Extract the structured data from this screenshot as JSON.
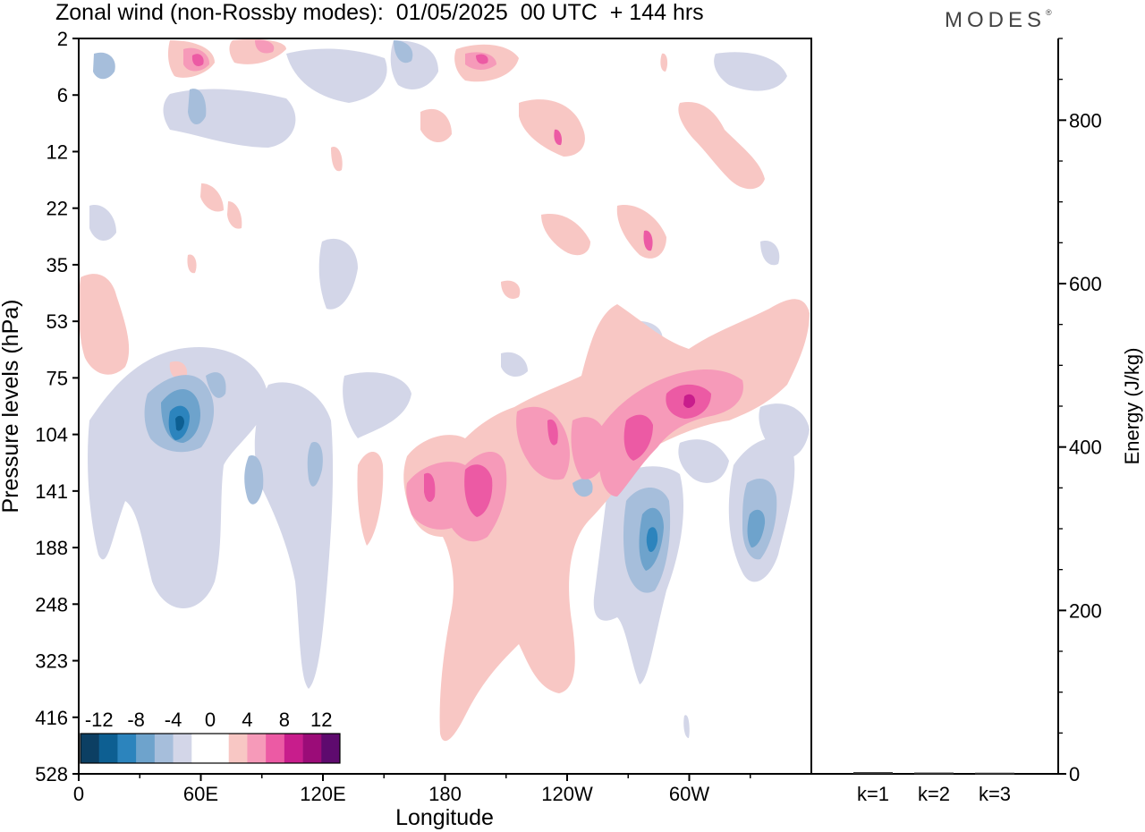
{
  "title": "Zonal wind (non-Rossby modes):  01/05/2025  00 UTC  + 144 hrs",
  "brand": "MODES",
  "brand_mark": "®",
  "chart_data": [
    {
      "type": "heatmap",
      "title": "Zonal wind (non-Rossby modes):  01/05/2025  00 UTC  + 144 hrs",
      "xlabel": "Longitude",
      "ylabel": "Pressure levels (hPa)",
      "x_ticks": [
        "0",
        "60E",
        "120E",
        "180",
        "120W",
        "60W"
      ],
      "y_ticks": [
        "2",
        "6",
        "12",
        "22",
        "35",
        "53",
        "75",
        "104",
        "141",
        "188",
        "248",
        "323",
        "416",
        "528"
      ],
      "colorbar": {
        "labels": [
          "-12",
          "-8",
          "-4",
          "0",
          "4",
          "8",
          "12"
        ],
        "colors": [
          "#0c3f63",
          "#0d5f92",
          "#2c84bd",
          "#6ea3cc",
          "#a6bedb",
          "#d3d6e8",
          "#ffffff",
          "#ffffff",
          "#f8c7c4",
          "#f69ab9",
          "#ec5aa4",
          "#c81d8c",
          "#9b0c78",
          "#5e0a6e"
        ]
      },
      "features": [
        {
          "sign": "negative",
          "longitude_deg": 48,
          "level_hPa": 104,
          "peak": -12
        },
        {
          "sign": "negative",
          "longitude_deg": 284,
          "level_hPa": 188,
          "peak": -8
        },
        {
          "sign": "negative",
          "longitude_deg": 331,
          "level_hPa": 188,
          "peak": -6
        },
        {
          "sign": "positive",
          "longitude_deg": 188,
          "level_hPa": 141,
          "peak": 8
        },
        {
          "sign": "positive",
          "longitude_deg": 300,
          "level_hPa": 90,
          "peak": 9
        },
        {
          "sign": "positive",
          "longitude_deg": 270,
          "level_hPa": 120,
          "peak": 7
        },
        {
          "sign": "positive",
          "longitude_deg": 172,
          "level_hPa": 141,
          "peak": 6
        }
      ]
    },
    {
      "type": "bar",
      "categories": [
        "k=1",
        "k=2",
        "k=3"
      ],
      "values": [
        1.0,
        0.5,
        0.3
      ],
      "ylabel": "Energy (J/kg)",
      "ylim": [
        0,
        900
      ],
      "y_ticks": [
        "0",
        "200",
        "400",
        "600",
        "800"
      ]
    }
  ]
}
